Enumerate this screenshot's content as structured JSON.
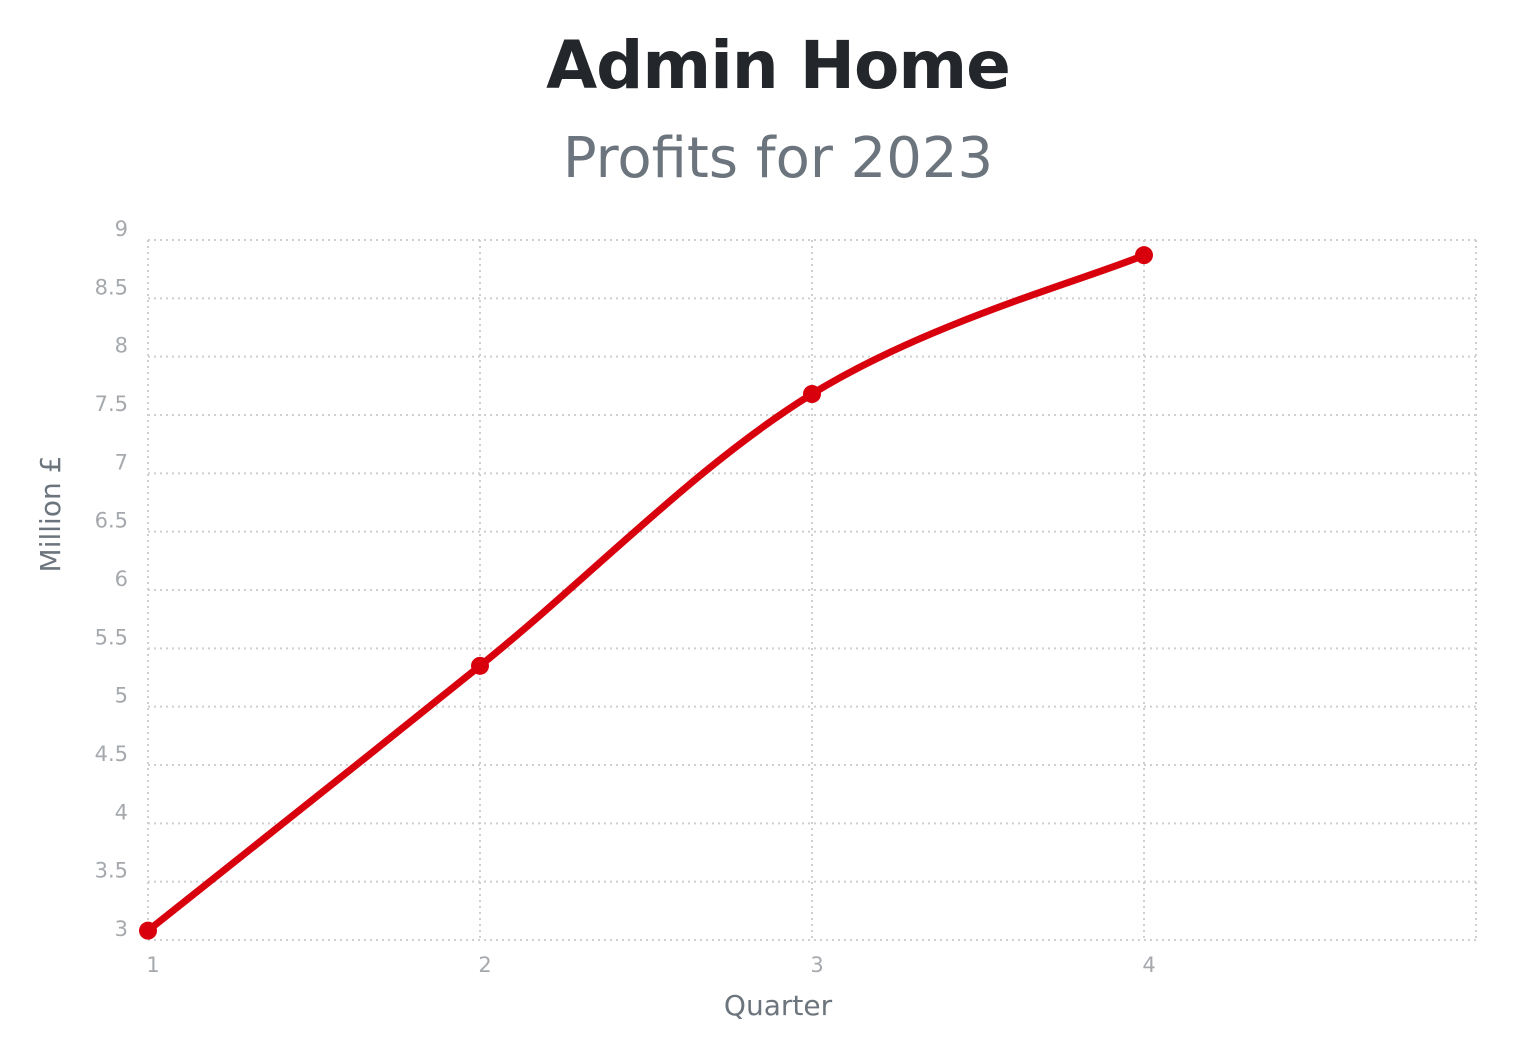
{
  "page": {
    "title": "Admin Home",
    "subtitle": "Profits for 2023"
  },
  "chart_data": {
    "type": "line",
    "x": [
      1,
      2,
      3,
      4
    ],
    "series": [
      {
        "values": [
          3.08,
          5.35,
          7.68,
          8.87
        ],
        "color": "#d9000d"
      }
    ],
    "xlabel": "Quarter",
    "ylabel": "Million £",
    "xlim": [
      1,
      5
    ],
    "ylim": [
      3,
      9
    ],
    "xticks": [
      1,
      2,
      3,
      4
    ],
    "yticks": [
      3,
      3.5,
      4,
      4.5,
      5,
      5.5,
      6,
      6.5,
      7,
      7.5,
      8,
      8.5,
      9
    ],
    "grid": true,
    "smooth": true,
    "legend": "none"
  }
}
